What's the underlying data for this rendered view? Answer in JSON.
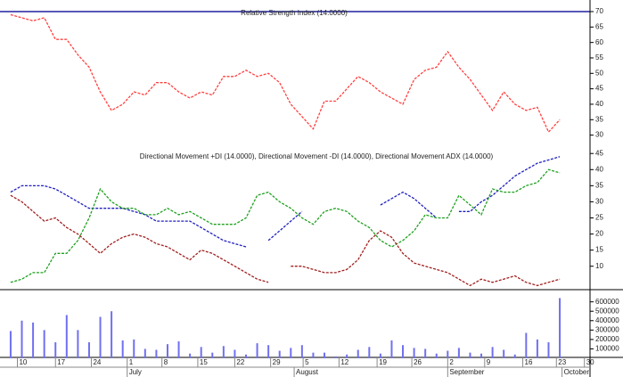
{
  "chart_data": [
    {
      "type": "line",
      "title": "Relative Strength Index (14.0000)",
      "xlim": [
        -0.95,
        51.7
      ],
      "ylim": [
        27,
        70
      ],
      "yticks": [
        30,
        35,
        40,
        45,
        50,
        55,
        60,
        65,
        70
      ],
      "series": [
        {
          "name": "RSI",
          "color": "#ff4040",
          "values": [
            69,
            68,
            67,
            68,
            61,
            61,
            56,
            52,
            44,
            38,
            40,
            44,
            43,
            47,
            47,
            44,
            42,
            44,
            43,
            49,
            49,
            51,
            49,
            50,
            47,
            40,
            36,
            32,
            41,
            41,
            45,
            49,
            47,
            44,
            42,
            40,
            48,
            51,
            52,
            57,
            52,
            48,
            43,
            38,
            44,
            40,
            38,
            39,
            31,
            35
          ]
        }
      ]
    },
    {
      "type": "line",
      "title": "Directional Movement +DI (14.0000), Directional Movement -DI (14.0000), Directional Movement ADX (14.0000)",
      "xlim": [
        -0.95,
        51.7
      ],
      "ylim": [
        3,
        47
      ],
      "yticks": [
        10,
        15,
        20,
        25,
        30,
        35,
        40,
        45
      ],
      "series": [
        {
          "name": "ADX",
          "color": "#2020c0",
          "values": [
            33,
            35,
            35,
            35,
            34,
            32,
            30,
            28,
            28,
            28,
            28,
            27,
            26,
            24,
            24,
            24,
            24,
            22,
            20,
            18,
            17,
            16,
            null,
            18,
            21,
            24,
            27,
            null,
            null,
            null,
            null,
            null,
            null,
            29,
            31,
            33,
            31,
            28,
            25,
            null,
            27,
            27,
            30,
            32,
            35,
            38,
            40,
            42,
            43,
            44
          ]
        },
        {
          "name": "+DI",
          "color": "#20a020",
          "values": [
            5,
            6,
            8,
            8,
            14,
            14,
            18,
            25,
            34,
            30,
            28,
            28,
            26,
            26,
            28,
            26,
            27,
            25,
            23,
            23,
            23,
            25,
            32,
            33,
            30,
            28,
            25,
            23,
            27,
            28,
            27,
            24,
            22,
            18,
            16,
            18,
            21,
            26,
            25,
            25,
            32,
            29,
            26,
            34,
            33,
            33,
            35,
            36,
            40,
            39
          ]
        },
        {
          "name": "-DI",
          "color": "#a02020",
          "values": [
            32,
            30,
            27,
            24,
            25,
            22,
            20,
            17,
            14,
            17,
            19,
            20,
            19,
            17,
            16,
            14,
            12,
            15,
            14,
            12,
            10,
            8,
            6,
            5,
            null,
            10,
            10,
            9,
            8,
            8,
            9,
            12,
            18,
            21,
            19,
            14,
            11,
            10,
            9,
            8,
            6,
            4,
            6,
            5,
            6,
            7,
            5,
            4,
            5,
            6
          ]
        }
      ]
    },
    {
      "type": "bar",
      "color": "#7070f0",
      "xlim": [
        -0.95,
        51.7
      ],
      "ylim": [
        0,
        720000
      ],
      "yticks": [
        100000,
        200000,
        300000,
        400000,
        500000,
        600000
      ],
      "values": [
        290000,
        400000,
        380000,
        300000,
        170000,
        460000,
        300000,
        170000,
        440000,
        500000,
        190000,
        200000,
        100000,
        90000,
        150000,
        180000,
        50000,
        120000,
        60000,
        130000,
        90000,
        40000,
        160000,
        140000,
        80000,
        110000,
        140000,
        60000,
        60000,
        20000,
        40000,
        90000,
        120000,
        50000,
        190000,
        140000,
        110000,
        100000,
        50000,
        80000,
        110000,
        60000,
        50000,
        120000,
        90000,
        40000,
        270000,
        200000,
        170000,
        640000
      ],
      "xticks": [
        {
          "value": 0.6,
          "label": "10"
        },
        {
          "value": 4,
          "label": "17"
        },
        {
          "value": 7.2,
          "label": "24"
        },
        {
          "value": 10.4,
          "label": "1"
        },
        {
          "value": 13.5,
          "label": "8"
        },
        {
          "value": 16.7,
          "label": "15"
        },
        {
          "value": 20,
          "label": "22"
        },
        {
          "value": 23.2,
          "label": "29"
        },
        {
          "value": 26.1,
          "label": "5"
        },
        {
          "value": 29.3,
          "label": "12"
        },
        {
          "value": 32.7,
          "label": "19"
        },
        {
          "value": 35.8,
          "label": "26"
        },
        {
          "value": 39,
          "label": "2"
        },
        {
          "value": 42.3,
          "label": "9"
        },
        {
          "value": 45.7,
          "label": "16"
        },
        {
          "value": 48.7,
          "label": "23"
        },
        {
          "value": 51.2,
          "label": "30"
        }
      ],
      "months": [
        {
          "value": 10.4,
          "label": "July"
        },
        {
          "value": 25.3,
          "label": "August"
        },
        {
          "value": 39,
          "label": "September"
        },
        {
          "value": 49.2,
          "label": "October"
        }
      ]
    }
  ]
}
